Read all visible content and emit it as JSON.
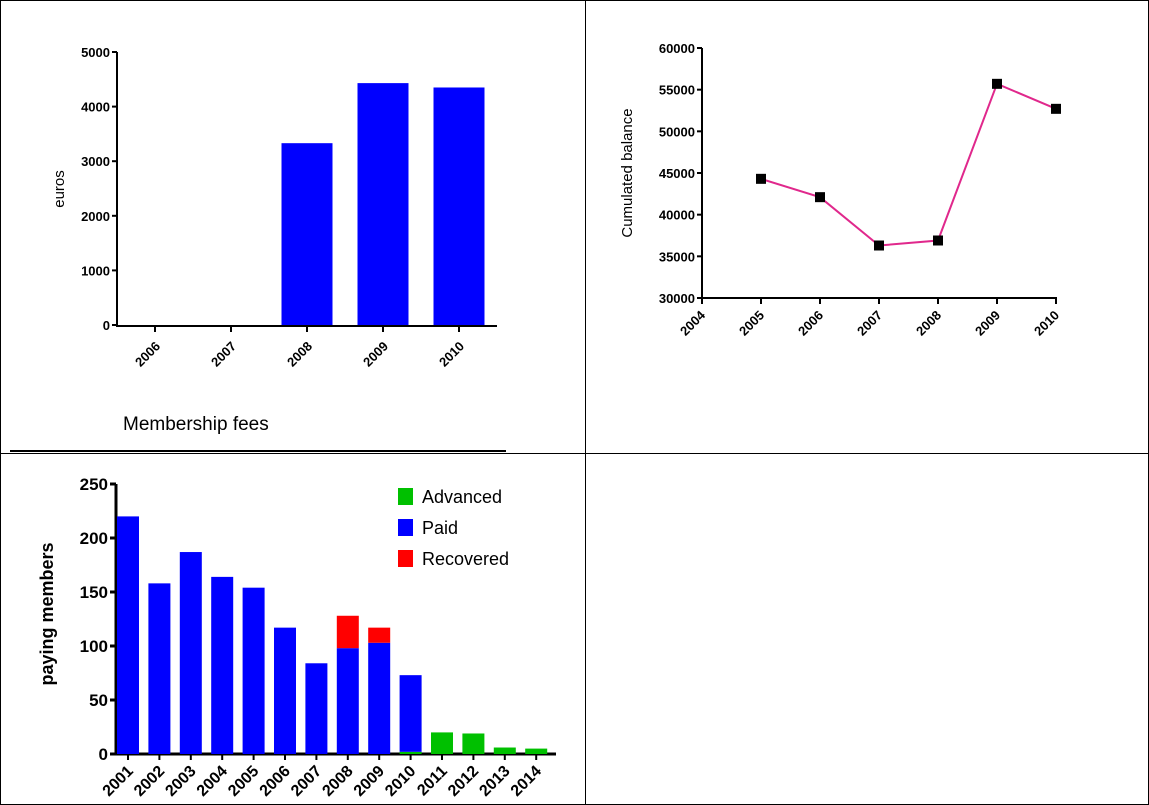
{
  "colors": {
    "blue": "#0000ff",
    "green": "#00c000",
    "red": "#ff0000",
    "line": "#e0288c",
    "marker": "#000000",
    "border": "#000000"
  },
  "caption": "Membership fees",
  "chart_data": [
    {
      "type": "bar",
      "categories": [
        "2006",
        "2007",
        "2008",
        "2009",
        "2010"
      ],
      "values": [
        0,
        0,
        3330,
        4430,
        4350
      ],
      "title": "",
      "xlabel": "",
      "ylabel": "euros",
      "ylim": [
        0,
        5000
      ],
      "yticks": [
        0,
        1000,
        2000,
        3000,
        4000,
        5000
      ],
      "color": "blue",
      "grid": false
    },
    {
      "type": "line",
      "x": [
        "2005",
        "2006",
        "2007",
        "2008",
        "2009",
        "2010"
      ],
      "xticks": [
        "2004",
        "2005",
        "2006",
        "2007",
        "2008",
        "2009",
        "2010"
      ],
      "values": [
        44300,
        42100,
        36300,
        36900,
        55700,
        52700
      ],
      "title": "",
      "xlabel": "",
      "ylabel": "Cumulated balance",
      "ylim": [
        30000,
        60000
      ],
      "yticks": [
        30000,
        35000,
        40000,
        45000,
        50000,
        55000,
        60000
      ],
      "marker": "square",
      "grid": false
    },
    {
      "type": "bar",
      "stacked": true,
      "categories": [
        "2001",
        "2002",
        "2003",
        "2004",
        "2005",
        "2006",
        "2007",
        "2008",
        "2009",
        "2010",
        "2011",
        "2012",
        "2013",
        "2014"
      ],
      "series": [
        {
          "name": "Advanced",
          "color": "green",
          "values": [
            0,
            0,
            0,
            0,
            0,
            0,
            0,
            0,
            0,
            2,
            20,
            19,
            6,
            5
          ]
        },
        {
          "name": "Paid",
          "color": "blue",
          "values": [
            220,
            158,
            187,
            164,
            154,
            117,
            84,
            98,
            103,
            71,
            0,
            0,
            0,
            0
          ]
        },
        {
          "name": "Recovered",
          "color": "red",
          "values": [
            0,
            0,
            0,
            0,
            0,
            0,
            0,
            30,
            14,
            0,
            0,
            0,
            0,
            0
          ]
        }
      ],
      "title": "",
      "xlabel": "",
      "ylabel": "paying members",
      "ylim": [
        0,
        250
      ],
      "yticks": [
        0,
        50,
        100,
        150,
        200,
        250
      ],
      "legend": "top-right",
      "grid": false
    }
  ]
}
